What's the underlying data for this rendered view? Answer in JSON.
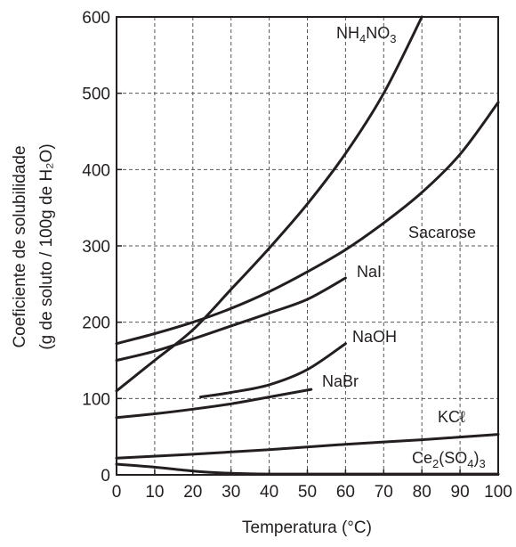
{
  "chart_data": {
    "type": "line",
    "xlabel": "Temperatura (°C)",
    "ylabel_line1": "Coeficiente de solubilidade",
    "ylabel_line2": "(g de soluto / 100g de H₂O)",
    "xlim": [
      0,
      100
    ],
    "ylim": [
      0,
      600
    ],
    "x_ticks": [
      0,
      10,
      20,
      30,
      40,
      50,
      60,
      70,
      80,
      90,
      100
    ],
    "y_ticks": [
      0,
      100,
      200,
      300,
      400,
      500,
      600
    ],
    "grid": true,
    "series": [
      {
        "name": "NH₄NO₃",
        "label_parts": [
          [
            "NH",
            ""
          ],
          [
            "4",
            "sub"
          ],
          [
            "NO",
            ""
          ],
          [
            "3",
            "sub"
          ]
        ],
        "x": [
          0,
          10,
          20,
          30,
          40,
          50,
          60,
          70,
          80
        ],
        "y": [
          110,
          150,
          190,
          243,
          297,
          355,
          421,
          500,
          600
        ]
      },
      {
        "name": "Sacarose",
        "label_parts": [
          [
            "Sacarose",
            ""
          ]
        ],
        "x": [
          0,
          10,
          20,
          30,
          40,
          50,
          60,
          70,
          80,
          90,
          100
        ],
        "y": [
          172,
          185,
          200,
          218,
          240,
          266,
          295,
          330,
          370,
          420,
          488
        ]
      },
      {
        "name": "NaI",
        "label_parts": [
          [
            "NaI",
            ""
          ]
        ],
        "x": [
          0,
          10,
          20,
          30,
          40,
          50,
          60
        ],
        "y": [
          150,
          162,
          178,
          195,
          212,
          230,
          258
        ]
      },
      {
        "name": "NaOH",
        "label_parts": [
          [
            "NaOH",
            ""
          ]
        ],
        "x": [
          22,
          30,
          40,
          50,
          60
        ],
        "y": [
          102,
          108,
          118,
          138,
          172
        ]
      },
      {
        "name": "NaBr",
        "label_parts": [
          [
            "NaBr",
            ""
          ]
        ],
        "x": [
          0,
          10,
          20,
          30,
          40,
          51
        ],
        "y": [
          75,
          80,
          86,
          93,
          102,
          112
        ]
      },
      {
        "name": "KCℓ",
        "label_parts": [
          [
            "KCℓ",
            ""
          ]
        ],
        "x": [
          0,
          20,
          40,
          60,
          80,
          100
        ],
        "y": [
          22,
          27,
          33,
          40,
          46,
          53
        ]
      },
      {
        "name": "Ce₂(SO₄)₃",
        "label_parts": [
          [
            "Ce",
            ""
          ],
          [
            "2",
            "sub"
          ],
          [
            "(SO",
            ""
          ],
          [
            "4",
            "sub"
          ],
          [
            ")",
            ""
          ],
          [
            "3",
            "sub"
          ]
        ],
        "x": [
          0,
          10,
          20,
          30,
          40,
          60,
          80,
          100
        ],
        "y": [
          14,
          10,
          5,
          2,
          1,
          1,
          1,
          1
        ]
      }
    ]
  }
}
